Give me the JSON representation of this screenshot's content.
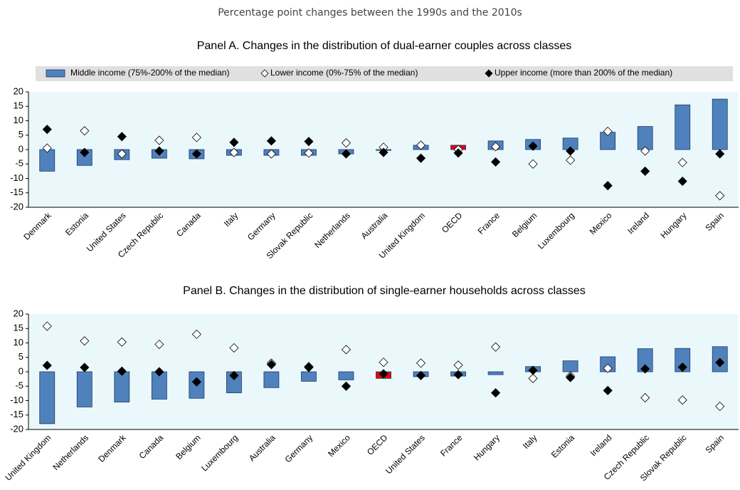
{
  "subtitle": "Percentage point changes between the 1990s and the 2010s",
  "chart_data": [
    {
      "type": "bar-dot",
      "title": "Panel A. Changes in the distribution of dual-earner couples across classes",
      "categories": [
        "Denmark",
        "Estonia",
        "United States",
        "Czech Republic",
        "Canada",
        "Italy",
        "Germany",
        "Slovak Republic",
        "Netherlands",
        "Australia",
        "United Kingdom",
        "OECD",
        "France",
        "Belgium",
        "Luxembourg",
        "Mexico",
        "Ireland",
        "Hungary",
        "Spain"
      ],
      "series": [
        {
          "name": "Middle income (75%-200% of the median)",
          "kind": "bar",
          "color": "#4f81bd",
          "values": [
            -7.5,
            -5.5,
            -3.5,
            -3,
            -3.2,
            -2,
            -2,
            -2,
            -1.5,
            -0.3,
            1.5,
            1.5,
            3,
            3.5,
            4,
            6,
            8,
            15.5,
            17.5
          ]
        },
        {
          "name": "Lower income (0%-75% of the median)",
          "kind": "open-diamond",
          "color": "#ffffff",
          "values": [
            0.5,
            6.5,
            -1.5,
            3.2,
            4.2,
            -1,
            -1.5,
            -1.2,
            2.3,
            0.8,
            1.5,
            0,
            1,
            -5,
            -3.7,
            6.3,
            -0.5,
            -4.5,
            -16
          ]
        },
        {
          "name": "Upper income (more than 200% of the median)",
          "kind": "filled-diamond",
          "color": "#000000",
          "values": [
            7,
            -1,
            4.5,
            -0.5,
            -1.5,
            2.5,
            3,
            2.8,
            -1.5,
            -1,
            -3,
            -1.2,
            -4.3,
            1.2,
            -0.5,
            -12.5,
            -7.5,
            -11,
            -1.5
          ]
        }
      ],
      "highlight": {
        "category": "OECD",
        "color": "#e8000b"
      },
      "ylim": [
        -20,
        20
      ],
      "yticks": [
        -20,
        -15,
        -10,
        -5,
        0,
        5,
        10,
        15,
        20
      ],
      "legend": "top"
    },
    {
      "type": "bar-dot",
      "title": "Panel B. Changes in the distribution of single-earner households across classes",
      "categories": [
        "United Kingdom",
        "Netherlands",
        "Denmark",
        "Canada",
        "Belgium",
        "Luxembourg",
        "Australia",
        "Germany",
        "Mexico",
        "OECD",
        "United States",
        "France",
        "Hungary",
        "Italy",
        "Estonia",
        "Ireland",
        "Czech Republic",
        "Slovak Republic",
        "Spain"
      ],
      "series": [
        {
          "kind": "bar",
          "color": "#4f81bd",
          "values": [
            -18,
            -12.2,
            -10.5,
            -9.5,
            -9.2,
            -7.3,
            -5.5,
            -3.3,
            -2.8,
            -2.3,
            -1.7,
            -1.5,
            -1,
            1.8,
            3.8,
            5.2,
            8,
            8.1,
            8.7
          ]
        },
        {
          "kind": "open-diamond",
          "color": "#ffffff",
          "values": [
            15.8,
            10.7,
            10.3,
            9.5,
            13,
            8.3,
            3,
            1.8,
            7.7,
            3.3,
            3,
            2.3,
            8.6,
            -2.3,
            -1.5,
            1.2,
            -9,
            -9.8,
            -12
          ]
        },
        {
          "kind": "filled-diamond",
          "color": "#000000",
          "values": [
            2.2,
            1.5,
            0.2,
            0,
            -3.5,
            -1.3,
            2.5,
            1.5,
            -5,
            -0.7,
            -1.3,
            -1,
            -7.3,
            0.5,
            -2,
            -6.5,
            1,
            1.6,
            3.2
          ]
        }
      ],
      "highlight": {
        "category": "OECD",
        "color": "#e8000b"
      },
      "ylim": [
        -20,
        20
      ],
      "yticks": [
        -20,
        -15,
        -10,
        -5,
        0,
        5,
        10,
        15,
        20
      ]
    }
  ]
}
